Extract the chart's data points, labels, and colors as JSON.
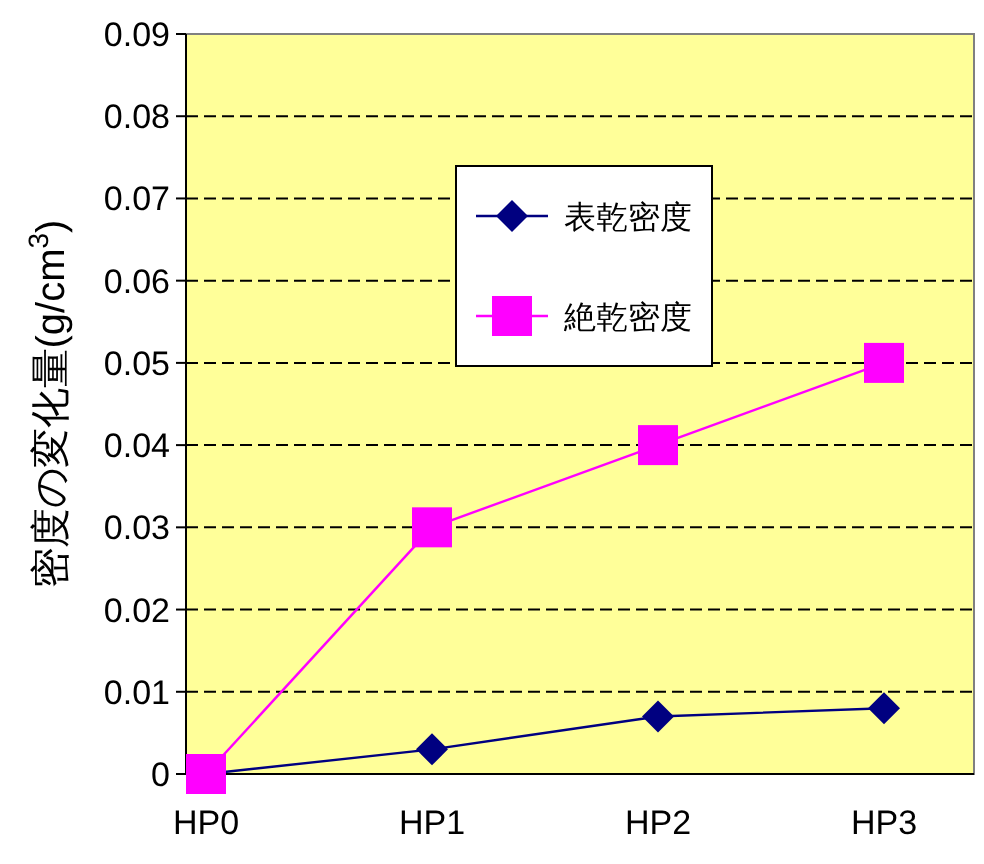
{
  "chart_data": {
    "type": "line",
    "ylabel": "密度の変化量(g/cm$^{3}$)",
    "categories": [
      "HP0",
      "HP1",
      "HP2",
      "HP3"
    ],
    "series": [
      {
        "name": "表乾密度",
        "color": "#000080",
        "marker": "diamond",
        "values": [
          0,
          0.003,
          0.007,
          0.008
        ]
      },
      {
        "name": "絶乾密度",
        "color": "#ff00ff",
        "marker": "square",
        "values": [
          0,
          0.03,
          0.04,
          0.05
        ]
      }
    ],
    "ylim": [
      0,
      0.09
    ],
    "yticks": [
      0,
      0.01,
      0.02,
      0.03,
      0.04,
      0.05,
      0.06,
      0.07,
      0.08,
      0.09
    ],
    "grid": "y",
    "legend": "top",
    "line_style": "solid"
  }
}
